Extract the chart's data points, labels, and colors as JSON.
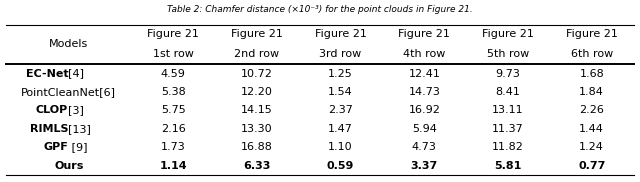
{
  "title": "Table 2: Chamfer distance (×10⁻³) for the point clouds in Figure 21.",
  "col_headers": [
    [
      "Figure 21",
      "1st row"
    ],
    [
      "Figure 21",
      "2nd row"
    ],
    [
      "Figure 21",
      "3rd row"
    ],
    [
      "Figure 21",
      "4th row"
    ],
    [
      "Figure 21",
      "5th row"
    ],
    [
      "Figure 21",
      "6th row"
    ]
  ],
  "row_labels": [
    "EC-Net[4]",
    "PointCleanNet[6]",
    "CLOP[3]",
    "RIMLS[13]",
    "GPF [9]",
    "Ours"
  ],
  "data": [
    [
      4.59,
      10.72,
      1.25,
      12.41,
      9.73,
      1.68
    ],
    [
      5.38,
      12.2,
      1.54,
      14.73,
      8.41,
      1.84
    ],
    [
      5.75,
      14.15,
      2.37,
      16.92,
      13.11,
      2.26
    ],
    [
      2.16,
      13.3,
      1.47,
      5.94,
      11.37,
      1.44
    ],
    [
      1.73,
      16.88,
      1.1,
      4.73,
      11.82,
      1.24
    ],
    [
      1.14,
      6.33,
      0.59,
      3.37,
      5.81,
      0.77
    ]
  ],
  "partial_bold_map": {
    "EC-Net[4]": [
      "EC-Net",
      "[4]"
    ],
    "PointCleanNet[6]": [
      null,
      "PointCleanNet[6]"
    ],
    "CLOP[3]": [
      "CLOP",
      "[3]"
    ],
    "RIMLS[13]": [
      "RIMLS",
      "[13]"
    ],
    "GPF [9]": [
      "GPF",
      " [9]"
    ],
    "Ours": [
      "Ours",
      null
    ]
  },
  "last_row_bold": true,
  "background_color": "#ffffff",
  "font_size": 8.0,
  "header_font_size": 8.0,
  "title_font_size": 6.5
}
